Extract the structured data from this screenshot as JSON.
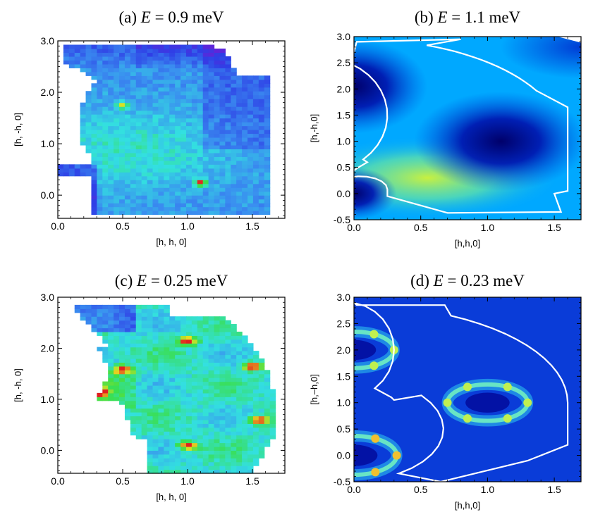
{
  "panels": [
    {
      "id": "a",
      "title_prefix": "(a) ",
      "title_var": "E",
      "title_suffix": " = 0.9 meV",
      "xlabel": "[h, h, 0]",
      "ylabel": "[h, -h, 0]",
      "xticks": [
        "0.0",
        "0.5",
        "1.0",
        "1.5"
      ],
      "yticks": [
        "0.0",
        "1.0",
        "2.0",
        "3.0"
      ]
    },
    {
      "id": "b",
      "title_prefix": "(b) ",
      "title_var": "E",
      "title_suffix": " = 1.1 meV",
      "xlabel": "[h,h,0]",
      "ylabel": "[h,-h,0]",
      "xticks": [
        "0.0",
        "0.5",
        "1.0",
        "1.5"
      ],
      "yticks": [
        "-0.5",
        "0.0",
        "0.5",
        "1.0",
        "1.5",
        "2.0",
        "2.5",
        "3.0"
      ]
    },
    {
      "id": "c",
      "title_prefix": "(c) ",
      "title_var": "E",
      "title_suffix": " = 0.25 meV",
      "xlabel": "[h, h, 0]",
      "ylabel": "[h, -h, 0]",
      "xticks": [
        "0.0",
        "0.5",
        "1.0",
        "1.5"
      ],
      "yticks": [
        "0.0",
        "1.0",
        "2.0",
        "3.0"
      ]
    },
    {
      "id": "d",
      "title_prefix": "(d) ",
      "title_var": "E",
      "title_suffix": " = 0.23 meV",
      "xlabel": "[h,h,0]",
      "ylabel": "[h,–h,0]",
      "xticks": [
        "0.0",
        "0.5",
        "1.0",
        "1.5"
      ],
      "yticks": [
        "-0.5",
        "0.0",
        "0.5",
        "1.0",
        "1.5",
        "2.0",
        "2.5",
        "3.0"
      ]
    }
  ],
  "chart_data": [
    {
      "type": "heatmap",
      "panel": "a",
      "title": "(a) E = 0.9 meV",
      "xlabel": "[h, h, 0]",
      "ylabel": "[h, -h, 0]",
      "xlim": [
        0.0,
        1.75
      ],
      "ylim": [
        -0.45,
        3.0
      ],
      "colormap": [
        "#6a1fd6",
        "#2f3fe6",
        "#3a8ef0",
        "#33e0e0",
        "#3adf4a",
        "#e8e020",
        "#e02020"
      ],
      "hot_spots": [
        {
          "x": 0.5,
          "y": 1.75
        },
        {
          "x": 1.1,
          "y": 0.25
        }
      ]
    },
    {
      "type": "heatmap",
      "panel": "b",
      "title": "(b) E = 1.1 meV",
      "xlabel": "[h,h,0]",
      "ylabel": "[h,-h,0]",
      "xlim": [
        0.0,
        1.7
      ],
      "ylim": [
        -0.5,
        3.0
      ],
      "colormap": [
        "#00007f",
        "#0030d0",
        "#00a0ff",
        "#40e0c0",
        "#d0f040"
      ],
      "minima": [
        {
          "x": 1.1,
          "y": 1.0
        },
        {
          "x": 0.0,
          "y": 2.0
        },
        {
          "x": 0.0,
          "y": 0.0
        }
      ]
    },
    {
      "type": "heatmap",
      "panel": "c",
      "title": "(c) E = 0.25 meV",
      "xlabel": "[h, h, 0]",
      "ylabel": "[h, -h, 0]",
      "xlim": [
        0.0,
        1.75
      ],
      "ylim": [
        -0.45,
        3.0
      ],
      "colormap": [
        "#2f3fe6",
        "#3a8ef0",
        "#33e0e0",
        "#3adf4a",
        "#e8e020",
        "#e02020"
      ],
      "hot_spots": [
        {
          "x": 1.0,
          "y": 2.15
        },
        {
          "x": 0.5,
          "y": 1.6
        },
        {
          "x": 1.5,
          "y": 1.65
        },
        {
          "x": 0.3,
          "y": 1.15
        },
        {
          "x": 1.55,
          "y": 0.6
        },
        {
          "x": 1.0,
          "y": 0.1
        }
      ]
    },
    {
      "type": "heatmap",
      "panel": "d",
      "title": "(d) E = 0.23 meV",
      "xlabel": "[h,h,0]",
      "ylabel": "[h,–h,0]",
      "xlim": [
        0.0,
        1.7
      ],
      "ylim": [
        -0.5,
        3.0
      ],
      "colormap": [
        "#00007f",
        "#0030d0",
        "#00a0ff",
        "#40e0c0",
        "#d0f040",
        "#f0a020"
      ],
      "ring_centers": [
        {
          "x": 1.0,
          "y": 1.0,
          "radius": 0.3
        },
        {
          "x": 0.0,
          "y": 2.0,
          "radius": 0.3
        },
        {
          "x": 0.0,
          "y": 0.0,
          "radius": 0.3
        }
      ]
    }
  ]
}
